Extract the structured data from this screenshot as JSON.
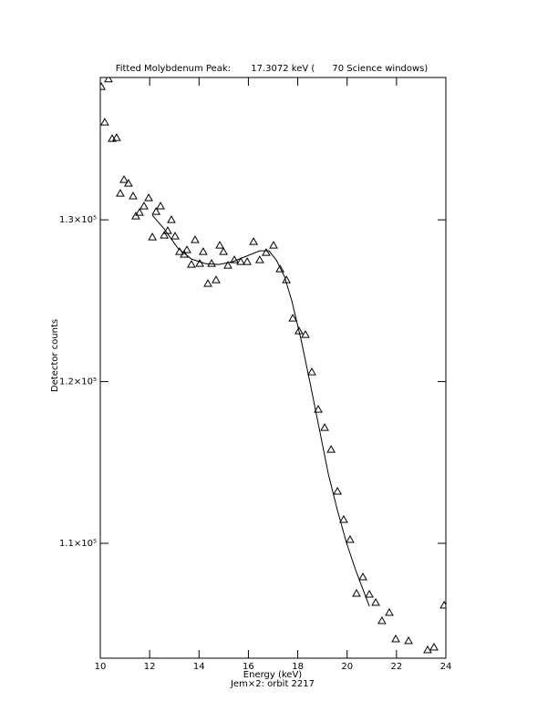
{
  "chart_data": {
    "type": "scatter",
    "title": "Fitted Molybdenum Peak:       17.3072 keV (      70 Science windows)",
    "xlabel": "Energy (keV)",
    "subtitle": "Jem×2: orbit 2217",
    "ylabel": "Detector counts",
    "xlim": [
      10,
      24
    ],
    "xticks": [
      10,
      12,
      14,
      16,
      18,
      20,
      22,
      24
    ],
    "ylim": [
      102900,
      138800
    ],
    "yticks": [
      {
        "value": 110000,
        "label": "1.1×10⁵"
      },
      {
        "value": 120000,
        "label": "1.2×10⁵"
      },
      {
        "value": 130000,
        "label": "1.3×10⁵"
      }
    ],
    "series": [
      {
        "type": "scatter",
        "marker": "triangle",
        "color": "#000000",
        "x": [
          10.04,
          10.33,
          10.18,
          10.48,
          10.66,
          10.81,
          10.96,
          11.14,
          11.33,
          11.44,
          11.59,
          11.77,
          11.96,
          12.11,
          12.26,
          12.44,
          12.59,
          12.73,
          12.88,
          13.03,
          13.21,
          13.4,
          13.51,
          13.69,
          13.84,
          14.03,
          14.17,
          14.36,
          14.51,
          14.69,
          14.84,
          14.99,
          15.17,
          15.43,
          15.69,
          15.95,
          16.21,
          16.46,
          16.72,
          17.02,
          17.28,
          17.54,
          17.8,
          18.05,
          18.31,
          18.57,
          18.83,
          19.09,
          19.35,
          19.61,
          19.86,
          20.12,
          20.38,
          20.64,
          20.9,
          21.16,
          21.41,
          21.71,
          21.97,
          22.49,
          23.26,
          23.52,
          23.93
        ],
        "values": [
          138226,
          138700,
          136028,
          135014,
          135071,
          131634,
          132479,
          132254,
          131465,
          130225,
          130451,
          130845,
          131352,
          128930,
          130507,
          130845,
          129042,
          129324,
          130000,
          128986,
          128028,
          127859,
          128141,
          127239,
          128761,
          127296,
          128028,
          126056,
          127296,
          126282,
          128423,
          128028,
          127183,
          127521,
          127408,
          127408,
          128648,
          127521,
          127972,
          128423,
          126958,
          126282,
          123915,
          123127,
          122901,
          120591,
          118281,
          117154,
          115802,
          113211,
          111464,
          110225,
          106901,
          107915,
          106845,
          106338,
          105211,
          105718,
          104084,
          103972,
          103408,
          103577,
          106169
        ]
      },
      {
        "type": "line",
        "color": "#000000",
        "x": [
          12.11,
          12.59,
          13.14,
          13.69,
          14.25,
          14.8,
          15.36,
          15.91,
          16.46,
          16.83,
          17.13,
          17.46,
          17.76,
          18.13,
          18.5,
          18.87,
          19.24,
          19.61,
          19.97,
          20.34,
          20.9
        ],
        "values": [
          130282,
          129437,
          128253,
          127577,
          127296,
          127239,
          127408,
          127746,
          128085,
          128085,
          127521,
          126507,
          124986,
          122620,
          119915,
          117098,
          114281,
          112028,
          110056,
          108366,
          106113
        ]
      }
    ]
  }
}
